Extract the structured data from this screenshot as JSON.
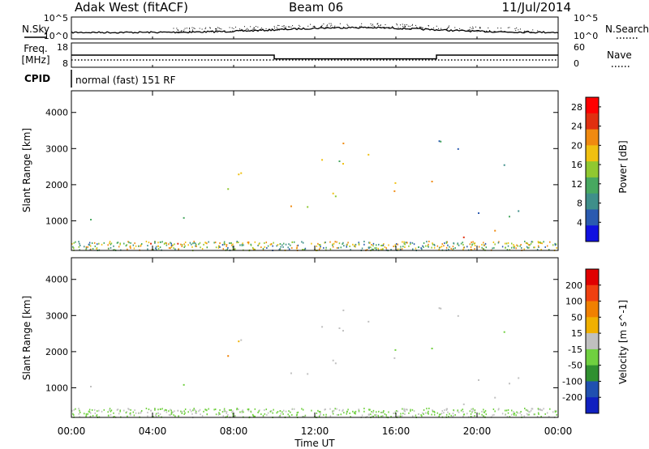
{
  "header": {
    "station": "Adak West (fitACF)",
    "beam": "Beam 06",
    "date": "11/Jul/2014"
  },
  "noise_panel": {
    "left_label": "N.Sky",
    "right_label": "N.Search",
    "left_ticks": [
      "10^5",
      "10^0"
    ],
    "right_ticks": [
      "10^5",
      "10^0"
    ]
  },
  "freq_panel": {
    "left_label_top": "Freq.",
    "left_label_unit": "[MHz]",
    "left_ticks": [
      "18",
      "8"
    ],
    "right_label": "Nave",
    "right_ticks": [
      "60",
      "0"
    ],
    "freq_segments": [
      {
        "start": 0,
        "end": 10,
        "value": 12.5
      },
      {
        "start": 10,
        "end": 18,
        "value": 10.2
      },
      {
        "start": 18,
        "end": 24,
        "value": 12.5
      }
    ]
  },
  "cpid_panel": {
    "label": "CPID",
    "value": "normal (fast) 151 RF"
  },
  "colors": {
    "power": [
      "#1010e0",
      "#2a5ab0",
      "#3f8f8a",
      "#48a860",
      "#90c830",
      "#f0c010",
      "#f08a10",
      "#e03010",
      "#ff0000"
    ],
    "velocity": [
      "#e00000",
      "#f04010",
      "#f08000",
      "#f0b000",
      "#c0c0c0",
      "#70d040",
      "#309030",
      "#2050b0",
      "#1020c0"
    ]
  },
  "chart_data": [
    {
      "type": "heatmap",
      "name": "power-panel",
      "ylabel": "Slant Range [km]",
      "ylim": [
        180,
        4600
      ],
      "y_ticks": [
        "1000",
        "2000",
        "3000",
        "4000"
      ],
      "y_tick_values": [
        1000,
        2000,
        3000,
        4000
      ],
      "xlim": [
        0,
        24
      ],
      "colorbar": {
        "label": "Power [dB]",
        "ticks": [
          "4",
          "8",
          "12",
          "16",
          "20",
          "24",
          "28"
        ],
        "tick_values": [
          4,
          8,
          12,
          16,
          20,
          24,
          28
        ],
        "range": [
          0,
          30
        ]
      },
      "echo_bands": [
        {
          "t": [
            0,
            6
          ],
          "r": [
            900,
            1200
          ],
          "level": 8
        },
        {
          "t": [
            3,
            6.2
          ],
          "r": [
            300,
            900
          ],
          "level": 29
        },
        {
          "t": [
            5,
            10
          ],
          "r": [
            1900,
            2500
          ],
          "level": 16
        },
        {
          "t": [
            10,
            16
          ],
          "r": [
            2600,
            3300
          ],
          "level": 18
        },
        {
          "t": [
            10,
            18
          ],
          "r": [
            1400,
            2200
          ],
          "level": 20
        },
        {
          "t": [
            18,
            24
          ],
          "r": [
            850,
            1300
          ],
          "level": 10
        },
        {
          "t": [
            15,
            22
          ],
          "r": [
            400,
            800
          ],
          "level": 22
        },
        {
          "t": [
            18,
            23
          ],
          "r": [
            2500,
            3300
          ],
          "level": 8
        }
      ]
    },
    {
      "type": "heatmap",
      "name": "velocity-panel",
      "ylabel": "Slant Range [km]",
      "ylim": [
        180,
        4600
      ],
      "y_ticks": [
        "1000",
        "2000",
        "3000",
        "4000"
      ],
      "y_tick_values": [
        1000,
        2000,
        3000,
        4000
      ],
      "xlim": [
        0,
        24
      ],
      "xlabel": "Time UT",
      "x_ticks": [
        "00:00",
        "04:00",
        "08:00",
        "12:00",
        "16:00",
        "20:00",
        "00:00"
      ],
      "x_tick_values": [
        0,
        4,
        8,
        12,
        16,
        20,
        24
      ],
      "colorbar": {
        "label": "Velocity [m s^-1]",
        "ticks": [
          "200",
          "100",
          "50",
          "15",
          "-15",
          "-50",
          "-100",
          "-200"
        ],
        "tick_values": [
          200,
          100,
          50,
          15,
          -15,
          -50,
          -100,
          -200
        ],
        "range": [
          -250,
          250
        ]
      }
    }
  ]
}
